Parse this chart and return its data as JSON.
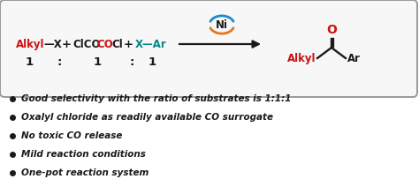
{
  "background_color": "#ffffff",
  "red_color": "#cc1111",
  "teal_color": "#008888",
  "black_color": "#1a1a1a",
  "orange_color": "#e07820",
  "blue_color": "#2288cc",
  "bullet_points": [
    "Good selectivity with the ratio of substrates is 1:1:1",
    "Oxalyl chloride as readily available CO surrogate",
    "No toxic CO release",
    "Mild reaction conditions",
    "One-pot reaction system"
  ],
  "figsize": [
    4.74,
    2.2
  ],
  "dpi": 100
}
